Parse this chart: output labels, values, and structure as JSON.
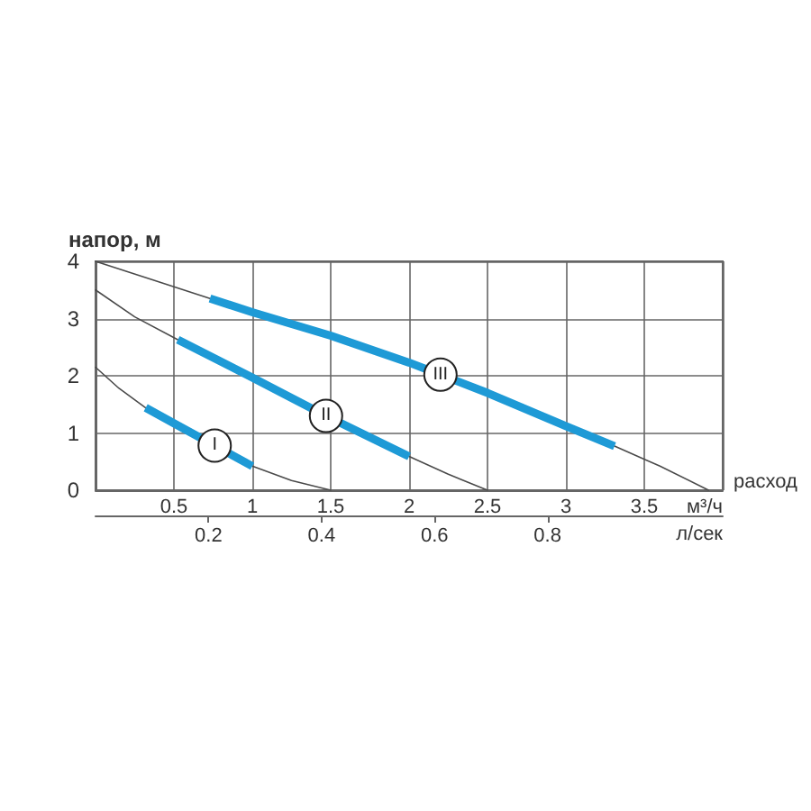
{
  "chart_data": {
    "type": "line",
    "ylabel": "напор, м",
    "xlabel": "м³/ч",
    "x2label": "л/сек",
    "annotations": [
      "расход"
    ],
    "xlim": [
      0,
      4
    ],
    "xticks": [
      0.5,
      1,
      1.5,
      2,
      2.5,
      3,
      3.5
    ],
    "x2lim": [
      0,
      1.11
    ],
    "x2ticks": [
      0.2,
      0.4,
      0.6,
      0.8
    ],
    "ylim": [
      0,
      4
    ],
    "yticks": [
      0,
      1,
      2,
      3,
      4
    ],
    "grid": true,
    "series": [
      {
        "color": "#4a4a4a",
        "x": [
          0,
          0.15,
          0.32,
          0.5,
          0.76,
          1.0,
          1.25,
          1.5
        ],
        "values": [
          2.15,
          1.78,
          1.44,
          1.17,
          0.78,
          0.42,
          0.17,
          0
        ]
      },
      {
        "color": "#4a4a4a",
        "x": [
          0,
          0.25,
          0.525,
          1,
          1.47,
          2,
          2.25,
          2.5
        ],
        "values": [
          3.5,
          3.03,
          2.63,
          1.97,
          1.3,
          0.59,
          0.28,
          0
        ]
      },
      {
        "color": "#4a4a4a",
        "x": [
          0,
          0.35,
          0.73,
          1,
          1.5,
          2,
          2.2,
          2.5,
          3,
          3.31,
          3.6,
          3.91
        ],
        "values": [
          4,
          3.69,
          3.35,
          3.11,
          2.7,
          2.23,
          2.02,
          1.7,
          1.12,
          0.77,
          0.42,
          0
        ]
      },
      {
        "name": "I",
        "color": "#1e9ad6",
        "x": [
          0.32,
          0.5,
          0.76,
          1.0
        ],
        "values": [
          1.44,
          1.17,
          0.78,
          0.42
        ]
      },
      {
        "name": "II",
        "color": "#1e9ad6",
        "x": [
          0.525,
          1,
          1.47,
          2
        ],
        "values": [
          2.63,
          1.97,
          1.3,
          0.59
        ]
      },
      {
        "name": "III",
        "color": "#1e9ad6",
        "x": [
          0.73,
          1,
          1.5,
          2,
          2.2,
          2.5,
          3,
          3.31
        ],
        "values": [
          3.35,
          3.11,
          2.7,
          2.23,
          2.02,
          1.7,
          1.12,
          0.77
        ]
      }
    ]
  }
}
